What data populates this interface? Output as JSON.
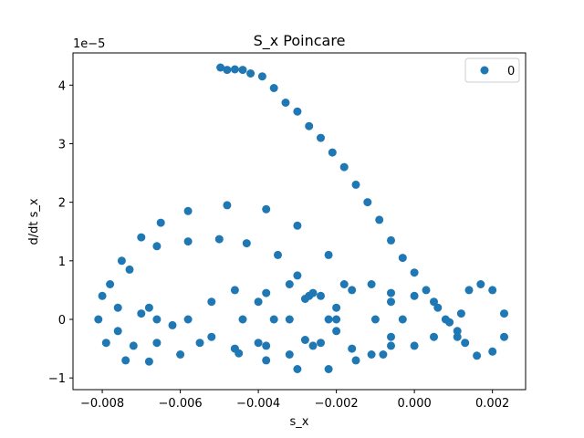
{
  "chart_data": {
    "type": "scatter",
    "title": "S_x Poincare",
    "xlabel": "s_x",
    "ylabel": "d/dt s_x",
    "y_offset_text": "1e−5",
    "xlim": [
      -0.00875,
      0.00285
    ],
    "ylim": [
      -1.2,
      4.55
    ],
    "y_unit_exponent": -5,
    "grid": false,
    "legend_position": "upper right",
    "x_ticks": [
      -0.008,
      -0.006,
      -0.004,
      -0.002,
      0.0,
      0.002
    ],
    "x_tick_labels": [
      "−0.008",
      "−0.006",
      "−0.004",
      "−0.002",
      "0.000",
      "0.002"
    ],
    "y_ticks": [
      -1,
      0,
      1,
      2,
      3,
      4
    ],
    "y_tick_labels": [
      "−1",
      "0",
      "1",
      "2",
      "3",
      "4"
    ],
    "series": [
      {
        "name": "0",
        "color": "#1f77b4",
        "points": [
          [
            -0.00497,
            4.3
          ],
          [
            -0.0048,
            4.26
          ],
          [
            -0.0046,
            4.27
          ],
          [
            -0.0044,
            4.26
          ],
          [
            -0.0042,
            4.2
          ],
          [
            -0.0039,
            4.15
          ],
          [
            -0.0036,
            3.95
          ],
          [
            -0.0033,
            3.7
          ],
          [
            -0.003,
            3.55
          ],
          [
            -0.0027,
            3.3
          ],
          [
            -0.0024,
            3.1
          ],
          [
            -0.0021,
            2.85
          ],
          [
            -0.0018,
            2.6
          ],
          [
            -0.0015,
            2.3
          ],
          [
            -0.0012,
            2.0
          ],
          [
            -0.0009,
            1.7
          ],
          [
            -0.0006,
            1.35
          ],
          [
            -0.0003,
            1.05
          ],
          [
            0.0,
            0.8
          ],
          [
            0.0003,
            0.5
          ],
          [
            0.0006,
            0.2
          ],
          [
            0.0009,
            -0.05
          ],
          [
            0.0011,
            -0.2
          ],
          [
            -0.0073,
            0.85
          ],
          [
            -0.0066,
            1.25
          ],
          [
            -0.0058,
            1.33
          ],
          [
            -0.005,
            1.37
          ],
          [
            -0.0043,
            1.3
          ],
          [
            -0.0035,
            1.1
          ],
          [
            -0.003,
            0.75
          ],
          [
            -0.0027,
            0.4
          ],
          [
            -0.0078,
            0.6
          ],
          [
            -0.0075,
            1.0
          ],
          [
            -0.007,
            1.4
          ],
          [
            -0.0065,
            1.65
          ],
          [
            -0.0058,
            1.85
          ],
          [
            -0.0048,
            1.95
          ],
          [
            -0.0038,
            1.88
          ],
          [
            -0.003,
            1.6
          ],
          [
            -0.0022,
            1.1
          ],
          [
            -0.0018,
            0.6
          ],
          [
            -0.008,
            0.4
          ],
          [
            -0.0081,
            0.0
          ],
          [
            -0.0079,
            -0.4
          ],
          [
            -0.0074,
            -0.7
          ],
          [
            -0.0068,
            -0.72
          ],
          [
            -0.006,
            -0.6
          ],
          [
            -0.0055,
            -0.4
          ],
          [
            -0.0045,
            -0.58
          ],
          [
            -0.0038,
            -0.7
          ],
          [
            -0.003,
            -0.85
          ],
          [
            -0.0022,
            -0.85
          ],
          [
            -0.0015,
            -0.7
          ],
          [
            -0.0008,
            -0.6
          ],
          [
            -0.0076,
            0.2
          ],
          [
            -0.0076,
            -0.2
          ],
          [
            -0.0072,
            -0.45
          ],
          [
            -0.0066,
            -0.4
          ],
          [
            -0.0062,
            -0.1
          ],
          [
            -0.007,
            0.1
          ],
          [
            -0.0068,
            0.2
          ],
          [
            -0.0066,
            0.0
          ],
          [
            -0.0058,
            0.0
          ],
          [
            -0.0052,
            0.3
          ],
          [
            -0.0046,
            0.5
          ],
          [
            -0.004,
            0.3
          ],
          [
            -0.0036,
            0.0
          ],
          [
            -0.004,
            -0.4
          ],
          [
            -0.0046,
            -0.5
          ],
          [
            -0.0052,
            -0.3
          ],
          [
            -0.0044,
            0.0
          ],
          [
            -0.0038,
            0.45
          ],
          [
            -0.0032,
            0.6
          ],
          [
            -0.0026,
            0.45
          ],
          [
            -0.0022,
            0.0
          ],
          [
            -0.0026,
            -0.45
          ],
          [
            -0.0032,
            -0.6
          ],
          [
            -0.0038,
            -0.45
          ],
          [
            -0.0032,
            0.0
          ],
          [
            -0.0028,
            0.35
          ],
          [
            -0.0024,
            0.4
          ],
          [
            -0.002,
            0.2
          ],
          [
            -0.002,
            -0.2
          ],
          [
            -0.0024,
            -0.4
          ],
          [
            -0.0028,
            -0.35
          ],
          [
            -0.002,
            0.0
          ],
          [
            -0.0016,
            0.5
          ],
          [
            -0.0011,
            0.6
          ],
          [
            -0.0006,
            0.45
          ],
          [
            -0.0003,
            0.0
          ],
          [
            -0.0006,
            -0.45
          ],
          [
            -0.0011,
            -0.6
          ],
          [
            -0.0016,
            -0.5
          ],
          [
            -0.001,
            0.0
          ],
          [
            -0.0006,
            0.3
          ],
          [
            0.0,
            0.4
          ],
          [
            0.0005,
            0.3
          ],
          [
            0.0008,
            0.0
          ],
          [
            0.0005,
            -0.3
          ],
          [
            0.0,
            -0.45
          ],
          [
            -0.0006,
            -0.3
          ],
          [
            0.0012,
            0.1
          ],
          [
            0.0014,
            0.5
          ],
          [
            0.0017,
            0.6
          ],
          [
            0.002,
            0.5
          ],
          [
            0.0023,
            0.1
          ],
          [
            0.0023,
            -0.3
          ],
          [
            0.002,
            -0.55
          ],
          [
            0.0016,
            -0.62
          ],
          [
            0.0013,
            -0.4
          ],
          [
            0.0011,
            -0.3
          ]
        ]
      }
    ]
  }
}
